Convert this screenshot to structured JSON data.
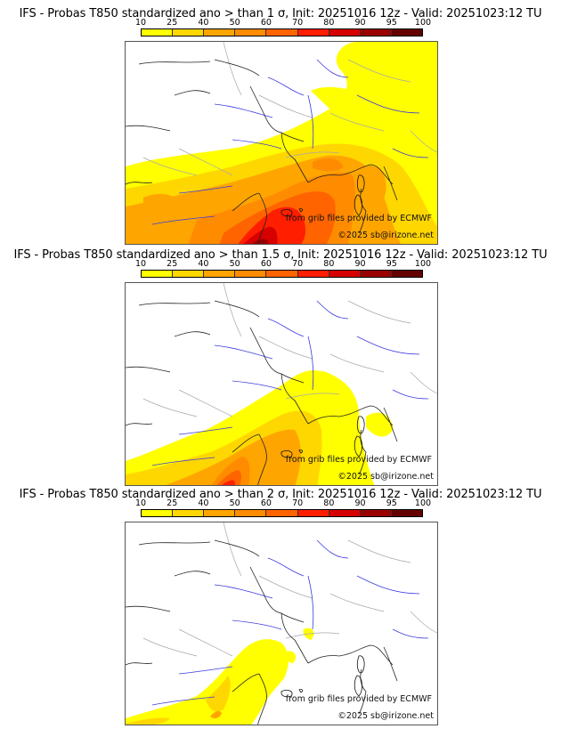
{
  "figure": {
    "source_note": "from grib files provided by ECMWF",
    "copyright": "©2025 sb@irizone.net"
  },
  "colorbar": {
    "ticks": [
      "10",
      "25",
      "40",
      "50",
      "60",
      "70",
      "80",
      "90",
      "95",
      "100"
    ],
    "colors": [
      "#ffff00",
      "#ffd700",
      "#ffa500",
      "#ff8c00",
      "#ff6400",
      "#ff1e00",
      "#d70000",
      "#9b0000",
      "#640000"
    ]
  },
  "panels": [
    {
      "title": "IFS - Probas T850  standardized ano > than 1 σ, Init: 20251016 12z - Valid: 20251023:12 TU",
      "threshold_sigma": "1",
      "max_probability_class": "95-100",
      "coverage": "large: SW France, Spain, Mediterranean, Alps, Italy, Germany/Central Europe"
    },
    {
      "title": "IFS - Probas T850  standardized ano > than 1.5 σ, Init: 20251016 12z - Valid: 20251023:12 TU",
      "threshold_sigma": "1.5",
      "max_probability_class": "80-90",
      "coverage": "medium: SE France, NE Spain, Gulf of Lion, Corsica area"
    },
    {
      "title": "IFS - Probas T850  standardized ano > than 2 σ, Init: 20251016 12z - Valid: 20251023:12 TU",
      "threshold_sigma": "2",
      "max_probability_class": "50-60",
      "coverage": "small: Gulf of Lion, NE Spain coast, Ligurian coast"
    }
  ]
}
